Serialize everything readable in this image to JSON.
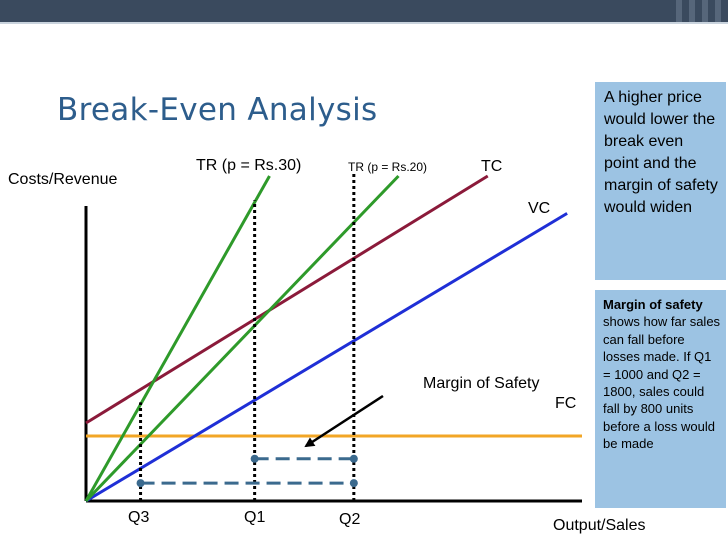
{
  "title": "Break-Even Analysis",
  "colors": {
    "tc": "#8b1a3a",
    "vc": "#1f2fd6",
    "tr": "#2e9a2a",
    "fc": "#f2a626",
    "title": "#2d5d8c",
    "note_bg": "#9cc3e3",
    "topbar": "#3a4a5e"
  },
  "chart_data": {
    "type": "line",
    "title": "Break-Even Analysis",
    "xlabel": "Output/Sales",
    "ylabel": "Costs/Revenue",
    "xlim": [
      0,
      10
    ],
    "ylim": [
      0,
      10
    ],
    "grid": false,
    "series": [
      {
        "name": "TR (p = Rs.30)",
        "x": [
          0,
          3.7
        ],
        "y": [
          0,
          10
        ],
        "color": "#2e9a2a"
      },
      {
        "name": "TR (p = Rs.20)",
        "x": [
          0,
          6.3
        ],
        "y": [
          0,
          10
        ],
        "color": "#2e9a2a"
      },
      {
        "name": "TC",
        "x": [
          0,
          8.1
        ],
        "y": [
          2.4,
          10
        ],
        "color": "#8b1a3a"
      },
      {
        "name": "VC",
        "x": [
          0,
          9.7
        ],
        "y": [
          0,
          8.85
        ],
        "color": "#1f2fd6"
      },
      {
        "name": "FC",
        "x": [
          0,
          10
        ],
        "y": [
          2.0,
          2.0
        ],
        "color": "#f2a626"
      }
    ],
    "tick_labels": [
      {
        "label": "Q3",
        "x": 1.1
      },
      {
        "label": "Q1",
        "x": 3.4
      },
      {
        "label": "Q2",
        "x": 5.4
      }
    ],
    "drop_lines_x": [
      1.1,
      3.4,
      5.4
    ],
    "annotations": [
      {
        "text": "Margin of Safety",
        "from_x": 3.4,
        "to_x": 5.4,
        "y": 1.3
      },
      {
        "text": "",
        "from_x": 1.1,
        "to_x": 5.4,
        "y": 0.55
      }
    ]
  },
  "notes": {
    "box1": "A higher price would lower the break even point and the margin of safety would widen",
    "box2_bold": "Margin of safety",
    "box2_text": " shows how far sales can fall before losses made. If Q1 = 1000 and Q2 = 1800, sales could fall by 800 units before a loss would be made"
  }
}
